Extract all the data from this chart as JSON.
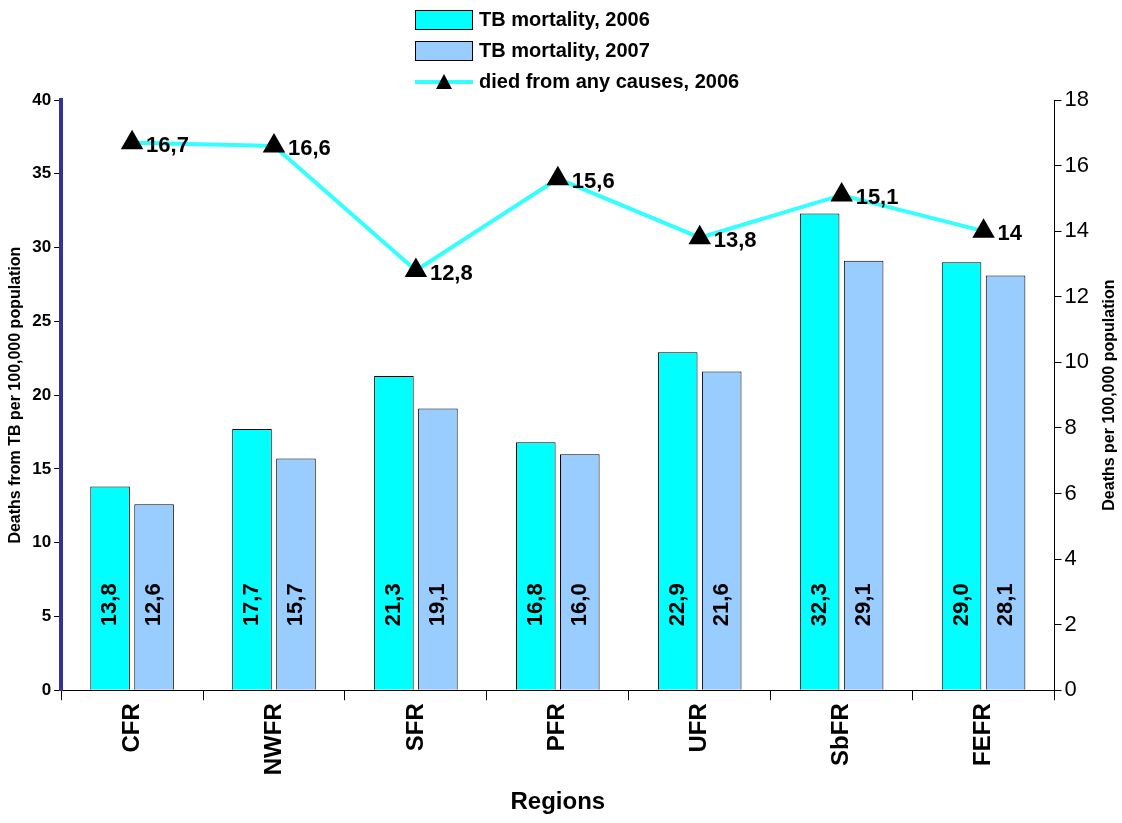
{
  "chart_data": {
    "type": "bar",
    "xlabel": "Regions",
    "ylabel": "Deaths from TB per 100,000 population",
    "y2label": "Deaths per 100,000 population",
    "categories": [
      "CFR",
      "NWFR",
      "SFR",
      "PFR",
      "UFR",
      "SbFR",
      "FEFR"
    ],
    "series": [
      {
        "name": "TB mortality, 2006",
        "color": "#00ffff",
        "values": [
          13.8,
          17.7,
          21.3,
          16.8,
          22.9,
          32.3,
          29.0
        ],
        "value_labels": [
          "13,8",
          "17,7",
          "21,3",
          "16,8",
          "22,9",
          "32,3",
          "29,0"
        ]
      },
      {
        "name": "TB mortality, 2007",
        "color": "#99ccff",
        "values": [
          12.6,
          15.7,
          19.1,
          16.0,
          21.6,
          29.1,
          28.1
        ],
        "value_labels": [
          "12,6",
          "15,7",
          "19,1",
          "16,0",
          "21,6",
          "29,1",
          "28,1"
        ]
      },
      {
        "name": "died from any causes, 2006",
        "type": "line",
        "axis": "y2",
        "color": "#33ffff",
        "marker": "triangle",
        "values": [
          16.7,
          16.6,
          12.8,
          15.6,
          13.8,
          15.1,
          14
        ],
        "value_labels": [
          "16,7",
          "16,6",
          "12,8",
          "15,6",
          "13,8",
          "15,1",
          "14"
        ]
      }
    ],
    "ylim": [
      0,
      40
    ],
    "yticks": [
      0,
      5,
      10,
      15,
      20,
      25,
      30,
      35,
      40
    ],
    "y2lim": [
      0,
      18
    ],
    "y2ticks": [
      0,
      2,
      4,
      6,
      8,
      10,
      12,
      14,
      16,
      18
    ],
    "grid": false,
    "legend": "top"
  }
}
